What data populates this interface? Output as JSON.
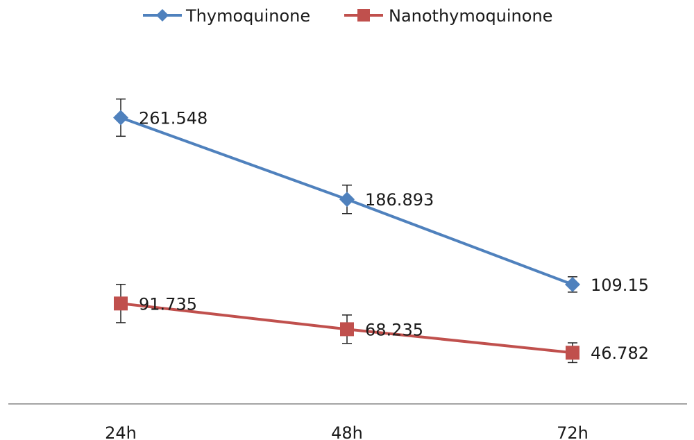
{
  "chart_data": {
    "type": "line",
    "categories": [
      "24h",
      "48h",
      "72h"
    ],
    "series": [
      {
        "name": "Thymoquinone",
        "values": [
          261.548,
          186.893,
          109.15
        ],
        "labels": [
          "261.548",
          "186.893",
          "109.15"
        ],
        "error": [
          17,
          13,
          7
        ],
        "color": "#4F81BD",
        "marker": "diamond"
      },
      {
        "name": "Nanothymoquinone",
        "values": [
          91.735,
          68.235,
          46.782
        ],
        "labels": [
          "91.735",
          "68.235",
          "46.782"
        ],
        "error": [
          17.5,
          13,
          9
        ],
        "color": "#C0504D",
        "marker": "square"
      }
    ],
    "ylim": [
      0,
      350
    ],
    "grid": false,
    "legend": "top"
  }
}
